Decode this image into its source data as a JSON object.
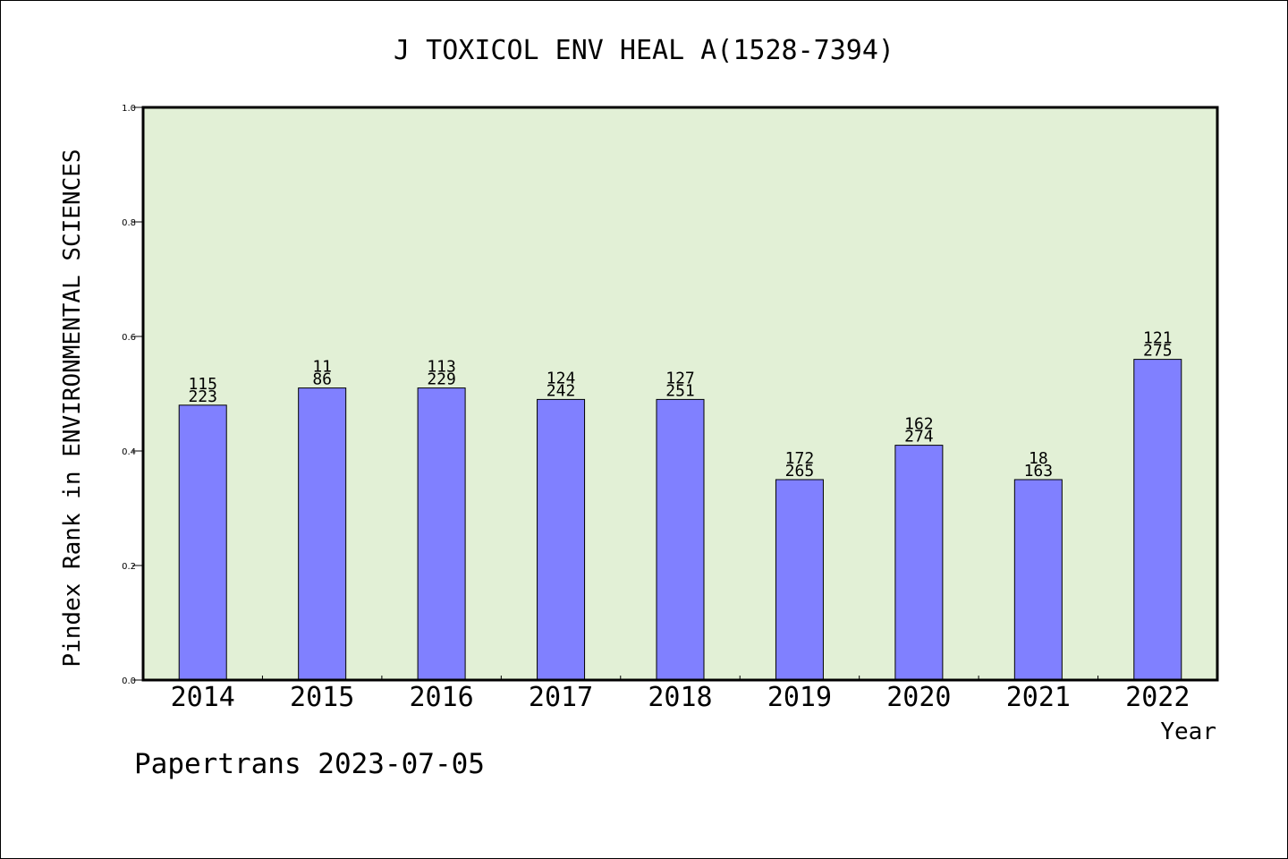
{
  "chart_data": {
    "type": "bar",
    "title": "J TOXICOL ENV HEAL A(1528-7394)",
    "xlabel": "Year",
    "ylabel": "Pindex Rank in ENVIRONMENTAL SCIENCES",
    "ylim": [
      0,
      1.0
    ],
    "yticks": [
      "0.0",
      "0.2",
      "0.4",
      "0.6",
      "0.8",
      "1.0"
    ],
    "categories": [
      "2014",
      "2015",
      "2016",
      "2017",
      "2018",
      "2019",
      "2020",
      "2021",
      "2022"
    ],
    "values": [
      0.48,
      0.51,
      0.51,
      0.49,
      0.49,
      0.35,
      0.41,
      0.35,
      0.56
    ],
    "labels_top": [
      "115",
      "11",
      "113",
      "124",
      "127",
      "172",
      "162",
      "18",
      "121"
    ],
    "labels_bottom": [
      "223",
      "86",
      "229",
      "242",
      "251",
      "265",
      "274",
      "163",
      "275"
    ],
    "grid": false,
    "colors": {
      "bar": "#8080ff",
      "plot_bg": "#e2f0d6",
      "axis": "#000000"
    }
  },
  "footer": {
    "text": "Papertrans 2023-07-05"
  }
}
